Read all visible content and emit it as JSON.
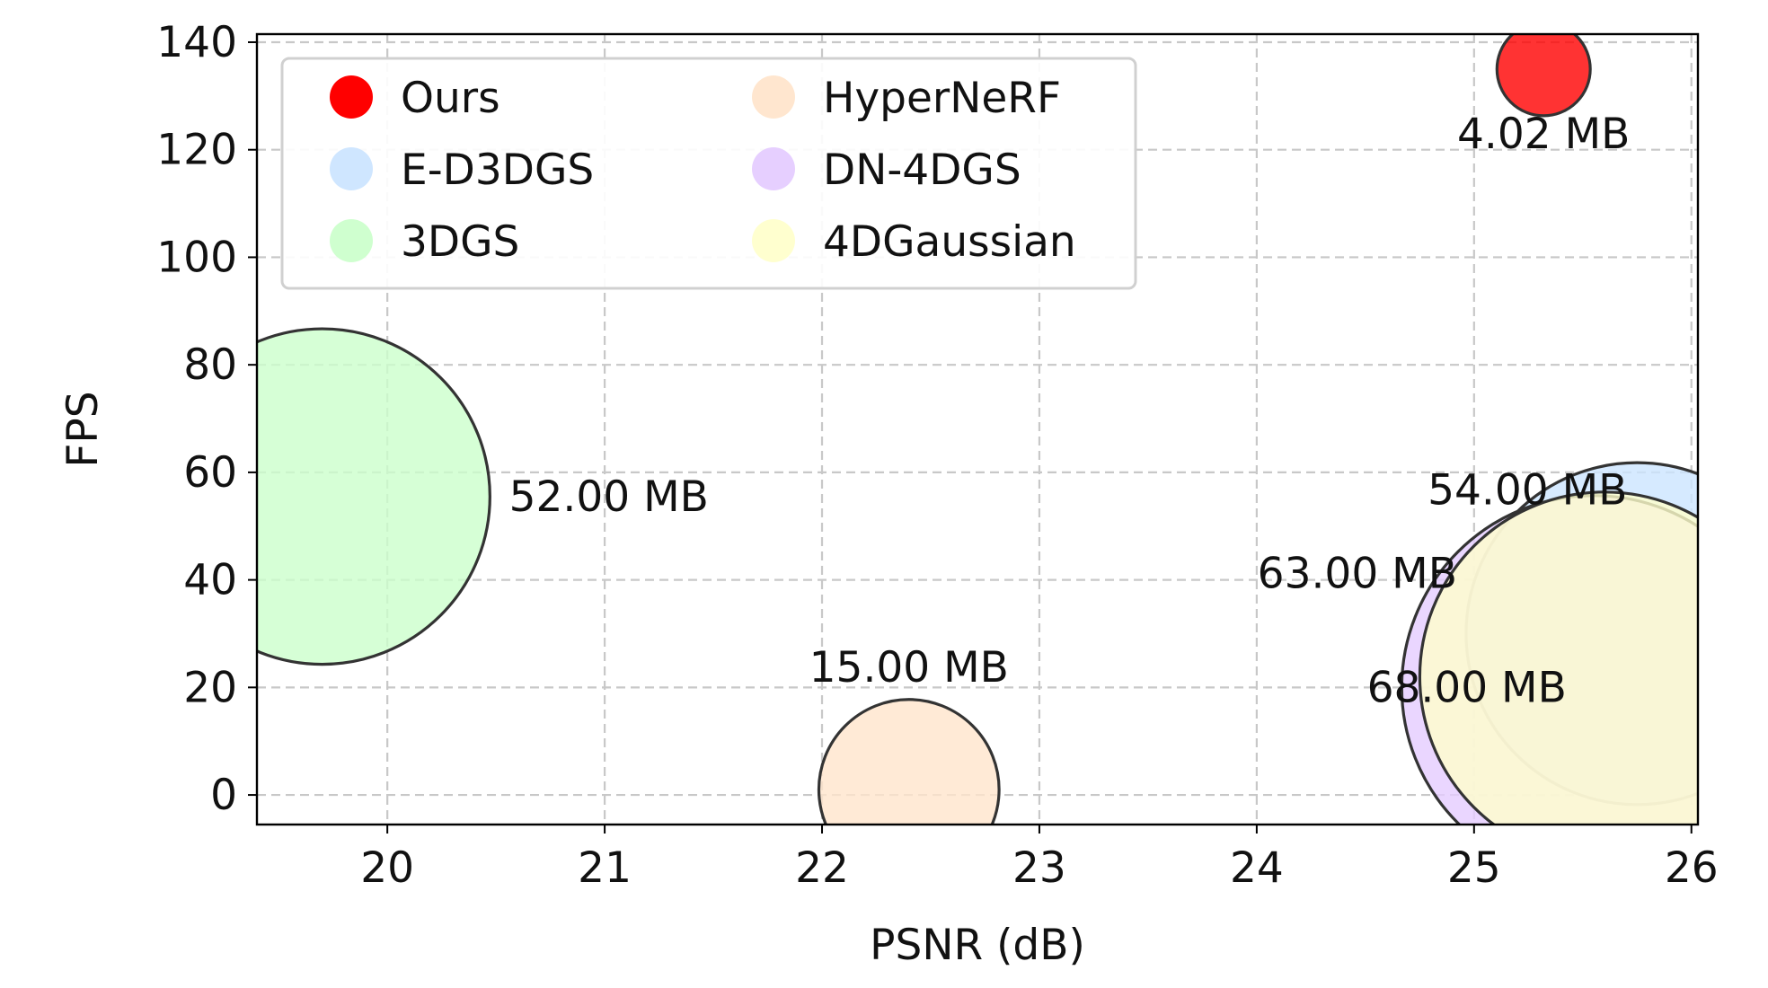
{
  "chart_data": {
    "type": "scatter",
    "title": "",
    "xlabel": "PSNR (dB)",
    "ylabel": "FPS",
    "xlim": [
      19.4,
      26.03
    ],
    "ylim": [
      -5.5,
      141.5
    ],
    "xticks": [
      20,
      21,
      22,
      23,
      24,
      25,
      26
    ],
    "yticks": [
      0,
      20,
      40,
      60,
      80,
      100,
      120,
      140
    ],
    "grid": true,
    "legend_position": "top-left",
    "legend_columns": 2,
    "bubble_size_unit": "MB",
    "series": [
      {
        "name": "Ours",
        "x": 25.32,
        "y": 135,
        "size": 4.02,
        "label": "4.02 MB",
        "color": "#ff0000"
      },
      {
        "name": "E-D3DGS",
        "x": 25.75,
        "y": 30,
        "size": 54.0,
        "label": "54.00 MB",
        "color": "#cce5ff"
      },
      {
        "name": "3DGS",
        "x": 19.7,
        "y": 55.5,
        "size": 52.0,
        "label": "52.00 MB",
        "color": "#ccffcc"
      },
      {
        "name": "HyperNeRF",
        "x": 22.4,
        "y": 1,
        "size": 15.0,
        "label": "15.00 MB",
        "color": "#ffe5cc"
      },
      {
        "name": "DN-4DGS",
        "x": 25.55,
        "y": 20,
        "size": 68.0,
        "label": "68.00 MB",
        "color": "#e5ccff"
      },
      {
        "name": "4DGaussian",
        "x": 25.6,
        "y": 22,
        "size": 63.0,
        "label": "63.00 MB",
        "color": "#ffffcc"
      }
    ]
  }
}
